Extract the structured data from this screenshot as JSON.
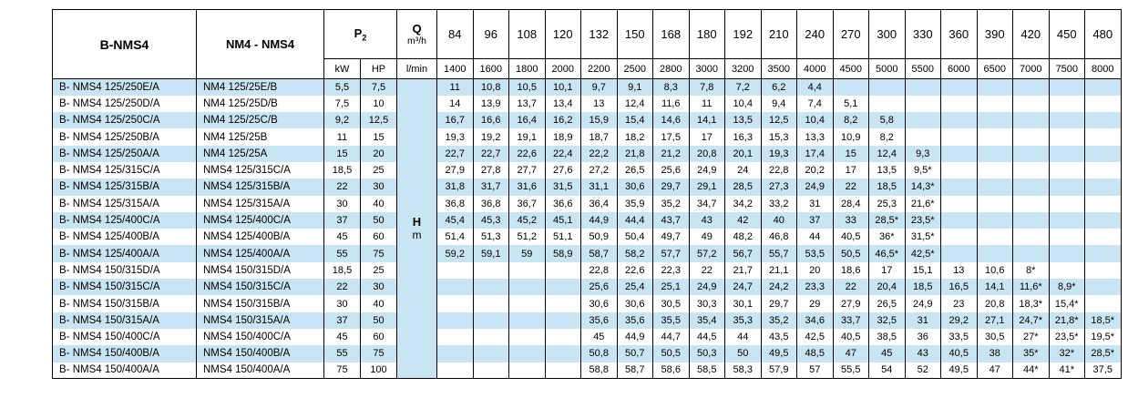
{
  "page": {
    "background": "#ffffff"
  },
  "table": {
    "colors": {
      "stripe": "#c9e4f2",
      "border": "#000000",
      "text": "#000000"
    },
    "header": {
      "series_b": "B-NMS4",
      "series_n": "NM4 - NMS4",
      "p2_symbol": "P",
      "p2_sub": "2",
      "q_symbol": "Q",
      "q_unit": "m³/h",
      "kw": "kW",
      "hp": "HP",
      "lmin": "l/min",
      "flow_m3h": [
        "84",
        "96",
        "108",
        "120",
        "132",
        "150",
        "168",
        "180",
        "192",
        "210",
        "240",
        "270",
        "300",
        "330",
        "360",
        "390",
        "420",
        "450",
        "480"
      ],
      "flow_lmin": [
        "1400",
        "1600",
        "1800",
        "2000",
        "2200",
        "2500",
        "2800",
        "3000",
        "3200",
        "3500",
        "4000",
        "4500",
        "5000",
        "5500",
        "6000",
        "6500",
        "7000",
        "7500",
        "8000"
      ]
    },
    "head": {
      "symbol": "H",
      "unit": "m"
    },
    "rows": [
      {
        "model_b": "B- NMS4 125/250E/A",
        "model_n": "NM4 125/25E/B",
        "kw": "5,5",
        "hp": "7,5",
        "values": [
          "11",
          "10,8",
          "10,5",
          "10,1",
          "9,7",
          "9,1",
          "8,3",
          "7,8",
          "7,2",
          "6,2",
          "4,4",
          "",
          "",
          "",
          "",
          "",
          "",
          "",
          ""
        ]
      },
      {
        "model_b": "B- NMS4 125/250D/A",
        "model_n": "NM4 125/25D/B",
        "kw": "7,5",
        "hp": "10",
        "values": [
          "14",
          "13,9",
          "13,7",
          "13,4",
          "13",
          "12,4",
          "11,6",
          "11",
          "10,4",
          "9,4",
          "7,4",
          "5,1",
          "",
          "",
          "",
          "",
          "",
          "",
          ""
        ]
      },
      {
        "model_b": "B- NMS4 125/250C/A",
        "model_n": "NM4 125/25C/B",
        "kw": "9,2",
        "hp": "12,5",
        "values": [
          "16,7",
          "16,6",
          "16,4",
          "16,2",
          "15,9",
          "15,4",
          "14,6",
          "14,1",
          "13,5",
          "12,5",
          "10,4",
          "8,2",
          "5,8",
          "",
          "",
          "",
          "",
          "",
          ""
        ]
      },
      {
        "model_b": "B- NMS4 125/250B/A",
        "model_n": "NM4 125/25B",
        "kw": "11",
        "hp": "15",
        "values": [
          "19,3",
          "19,2",
          "19,1",
          "18,9",
          "18,7",
          "18,2",
          "17,5",
          "17",
          "16,3",
          "15,3",
          "13,3",
          "10,9",
          "8,2",
          "",
          "",
          "",
          "",
          "",
          ""
        ]
      },
      {
        "model_b": "B- NMS4 125/250A/A",
        "model_n": "NM4 125/25A",
        "kw": "15",
        "hp": "20",
        "values": [
          "22,7",
          "22,7",
          "22,6",
          "22,4",
          "22,2",
          "21,8",
          "21,2",
          "20,8",
          "20,1",
          "19,3",
          "17,4",
          "15",
          "12,4",
          "9,3",
          "",
          "",
          "",
          "",
          ""
        ]
      },
      {
        "model_b": "B- NMS4 125/315C/A",
        "model_n": "NMS4 125/315C/A",
        "kw": "18,5",
        "hp": "25",
        "values": [
          "27,9",
          "27,8",
          "27,7",
          "27,6",
          "27,2",
          "26,5",
          "25,6",
          "24,9",
          "24",
          "22,8",
          "20,2",
          "17",
          "13,5",
          "9,5*",
          "",
          "",
          "",
          "",
          ""
        ]
      },
      {
        "model_b": "B- NMS4 125/315B/A",
        "model_n": "NMS4 125/315B/A",
        "kw": "22",
        "hp": "30",
        "values": [
          "31,8",
          "31,7",
          "31,6",
          "31,5",
          "31,1",
          "30,6",
          "29,7",
          "29,1",
          "28,5",
          "27,3",
          "24,9",
          "22",
          "18,5",
          "14,3*",
          "",
          "",
          "",
          "",
          ""
        ]
      },
      {
        "model_b": "B- NMS4 125/315A/A",
        "model_n": "NMS4 125/315A/A",
        "kw": "30",
        "hp": "40",
        "values": [
          "36,8",
          "36,8",
          "36,7",
          "36,6",
          "36,4",
          "35,9",
          "35,2",
          "34,7",
          "34,2",
          "33,2",
          "31",
          "28,4",
          "25,3",
          "21,6*",
          "",
          "",
          "",
          "",
          ""
        ]
      },
      {
        "model_b": "B- NMS4 125/400C/A",
        "model_n": "NMS4 125/400C/A",
        "kw": "37",
        "hp": "50",
        "values": [
          "45,4",
          "45,3",
          "45,2",
          "45,1",
          "44,9",
          "44,4",
          "43,7",
          "43",
          "42",
          "40",
          "37",
          "33",
          "28,5*",
          "23,5*",
          "",
          "",
          "",
          "",
          ""
        ]
      },
      {
        "model_b": "B- NMS4 125/400B/A",
        "model_n": "NMS4 125/400B/A",
        "kw": "45",
        "hp": "60",
        "values": [
          "51,4",
          "51,3",
          "51,2",
          "51,1",
          "50,9",
          "50,4",
          "49,7",
          "49",
          "48,2",
          "46,8",
          "44",
          "40,5",
          "36*",
          "31,5*",
          "",
          "",
          "",
          "",
          ""
        ]
      },
      {
        "model_b": "B- NMS4 125/400A/A",
        "model_n": "NMS4 125/400A/A",
        "kw": "55",
        "hp": "75",
        "values": [
          "59,2",
          "59,1",
          "59",
          "58,9",
          "58,7",
          "58,2",
          "57,7",
          "57,2",
          "56,7",
          "55,7",
          "53,5",
          "50,5",
          "46,5*",
          "42,5*",
          "",
          "",
          "",
          "",
          ""
        ]
      },
      {
        "model_b": "B- NMS4 150/315D/A",
        "model_n": "NMS4 150/315D/A",
        "kw": "18,5",
        "hp": "25",
        "values": [
          "",
          "",
          "",
          "",
          "22,8",
          "22,6",
          "22,3",
          "22",
          "21,7",
          "21,1",
          "20",
          "18,6",
          "17",
          "15,1",
          "13",
          "10,6",
          "8*",
          "",
          ""
        ]
      },
      {
        "model_b": "B- NMS4 150/315C/A",
        "model_n": "NMS4 150/315C/A",
        "kw": "22",
        "hp": "30",
        "values": [
          "",
          "",
          "",
          "",
          "25,6",
          "25,4",
          "25,1",
          "24,9",
          "24,7",
          "24,2",
          "23,3",
          "22",
          "20,4",
          "18,5",
          "16,5",
          "14,1",
          "11,6*",
          "8,9*",
          ""
        ]
      },
      {
        "model_b": "B- NMS4 150/315B/A",
        "model_n": "NMS4 150/315B/A",
        "kw": "30",
        "hp": "40",
        "values": [
          "",
          "",
          "",
          "",
          "30,6",
          "30,6",
          "30,5",
          "30,3",
          "30,1",
          "29,7",
          "29",
          "27,9",
          "26,5",
          "24,9",
          "23",
          "20,8",
          "18,3*",
          "15,4*",
          ""
        ]
      },
      {
        "model_b": "B- NMS4 150/315A/A",
        "model_n": "NMS4 150/315A/A",
        "kw": "37",
        "hp": "50",
        "values": [
          "",
          "",
          "",
          "",
          "35,6",
          "35,6",
          "35,5",
          "35,4",
          "35,3",
          "35,2",
          "34,6",
          "33,7",
          "32,5",
          "31",
          "29,2",
          "27,1",
          "24,7*",
          "21,8*",
          "18,5*"
        ]
      },
      {
        "model_b": "B- NMS4 150/400C/A",
        "model_n": "NMS4 150/400C/A",
        "kw": "45",
        "hp": "60",
        "values": [
          "",
          "",
          "",
          "",
          "45",
          "44,9",
          "44,7",
          "44,5",
          "44",
          "43,5",
          "42,5",
          "40,5",
          "38,5",
          "36",
          "33,5",
          "30,5",
          "27*",
          "23,5*",
          "19,5*"
        ]
      },
      {
        "model_b": "B- NMS4 150/400B/A",
        "model_n": "NMS4 150/400B/A",
        "kw": "55",
        "hp": "75",
        "values": [
          "",
          "",
          "",
          "",
          "50,8",
          "50,7",
          "50,5",
          "50,3",
          "50",
          "49,5",
          "48,5",
          "47",
          "45",
          "43",
          "40,5",
          "38",
          "35*",
          "32*",
          "28,5*"
        ]
      },
      {
        "model_b": "B- NMS4 150/400A/A",
        "model_n": "NMS4 150/400A/A",
        "kw": "75",
        "hp": "100",
        "values": [
          "",
          "",
          "",
          "",
          "58,8",
          "58,7",
          "58,6",
          "58,5",
          "58,3",
          "57,9",
          "57",
          "55,5",
          "54",
          "52",
          "49,5",
          "47",
          "44*",
          "41*",
          "37,5"
        ]
      }
    ]
  }
}
